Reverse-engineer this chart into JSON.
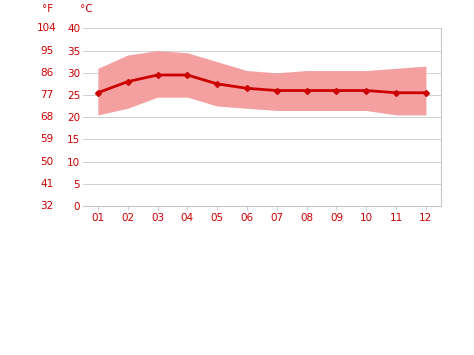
{
  "months": [
    1,
    2,
    3,
    4,
    5,
    6,
    7,
    8,
    9,
    10,
    11,
    12
  ],
  "month_labels": [
    "01",
    "02",
    "03",
    "04",
    "05",
    "06",
    "07",
    "08",
    "09",
    "10",
    "11",
    "12"
  ],
  "avg_temp_c": [
    25.5,
    28.0,
    29.5,
    29.5,
    27.5,
    26.5,
    26.0,
    26.0,
    26.0,
    26.0,
    25.5,
    25.5
  ],
  "max_temp_c": [
    31.0,
    34.0,
    35.0,
    34.5,
    32.5,
    30.5,
    30.0,
    30.5,
    30.5,
    30.5,
    31.0,
    31.5
  ],
  "min_temp_c": [
    20.5,
    22.0,
    24.5,
    24.5,
    22.5,
    22.0,
    21.5,
    21.5,
    21.5,
    21.5,
    20.5,
    20.5
  ],
  "ylabel_left_f": [
    32,
    41,
    50,
    59,
    68,
    77,
    86,
    95,
    104
  ],
  "ylabel_left_c": [
    0,
    5,
    10,
    15,
    20,
    25,
    30,
    35,
    40
  ],
  "ylim_c": [
    0,
    40
  ],
  "xlim": [
    0.5,
    12.5
  ],
  "line_color": "#cc0000",
  "band_color": "#f4a0a0",
  "grid_color": "#c8c8c8",
  "label_color": "#cc0000",
  "bg_color": "#ffffff",
  "marker": "D",
  "marker_size": 3,
  "line_width": 2.0,
  "label_fontsize": 7.5
}
